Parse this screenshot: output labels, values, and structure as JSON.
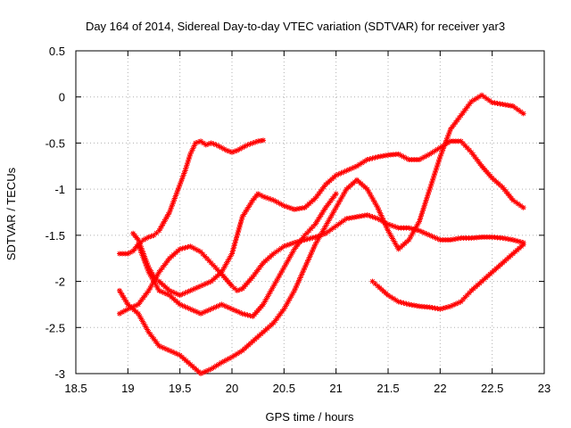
{
  "chart_data": {
    "type": "scatter",
    "title": "Day 164 of 2014, Sidereal Day-to-day VTEC variation (SDTVAR) for receiver yar3",
    "xlabel": "GPS time / hours",
    "ylabel": "SDTVAR / TECUs",
    "xlim": [
      18.5,
      23
    ],
    "ylim": [
      -3,
      0.5
    ],
    "xticks": [
      18.5,
      19,
      19.5,
      20,
      20.5,
      21,
      21.5,
      22,
      22.5,
      23
    ],
    "xtick_labels": [
      "18.5",
      "19",
      "19.5",
      "20",
      "20.5",
      "21",
      "21.5",
      "22",
      "22.5",
      "23"
    ],
    "yticks": [
      0.5,
      0,
      -0.5,
      -1,
      -1.5,
      -2,
      -2.5,
      -3
    ],
    "ytick_labels": [
      "0.5",
      "0",
      "-0.5",
      "-1",
      "-1.5",
      "-2",
      "-2.5",
      "-3"
    ],
    "grid": true,
    "legend": "none",
    "marker": "plus-cross",
    "color": "#ff0000",
    "series": [
      {
        "x": [
          18.92,
          19.0,
          19.05,
          19.1,
          19.15,
          19.2,
          19.25,
          19.3,
          19.35,
          19.4,
          19.45,
          19.5,
          19.55,
          19.6,
          19.65,
          19.7,
          19.75,
          19.8,
          19.85,
          19.9,
          19.95,
          20.0,
          20.05,
          20.1,
          20.15,
          20.2,
          20.25,
          20.3
        ],
        "y": [
          -1.7,
          -1.7,
          -1.67,
          -1.6,
          -1.55,
          -1.52,
          -1.5,
          -1.45,
          -1.35,
          -1.25,
          -1.1,
          -0.95,
          -0.8,
          -0.62,
          -0.5,
          -0.48,
          -0.52,
          -0.5,
          -0.52,
          -0.55,
          -0.58,
          -0.6,
          -0.58,
          -0.55,
          -0.52,
          -0.5,
          -0.48,
          -0.47
        ]
      },
      {
        "x": [
          18.92,
          19.0,
          19.1,
          19.2,
          19.3,
          19.4,
          19.5,
          19.6,
          19.7,
          19.8,
          19.9,
          20.0,
          20.05,
          20.1,
          20.2,
          20.3,
          20.4,
          20.5,
          20.6,
          20.7,
          20.8,
          20.9,
          21.0,
          21.1,
          21.2,
          21.3,
          21.4,
          21.5,
          21.6,
          21.7,
          21.8,
          21.9,
          22.0,
          22.1,
          22.2,
          22.3,
          22.4,
          22.5,
          22.6,
          22.7,
          22.8
        ],
        "y": [
          -2.35,
          -2.3,
          -2.25,
          -2.1,
          -1.9,
          -1.75,
          -1.65,
          -1.62,
          -1.68,
          -1.8,
          -1.92,
          -2.05,
          -2.1,
          -2.08,
          -1.95,
          -1.8,
          -1.7,
          -1.62,
          -1.58,
          -1.55,
          -1.52,
          -1.48,
          -1.4,
          -1.32,
          -1.3,
          -1.28,
          -1.32,
          -1.38,
          -1.42,
          -1.42,
          -1.45,
          -1.5,
          -1.55,
          -1.55,
          -1.53,
          -1.53,
          -1.52,
          -1.52,
          -1.53,
          -1.55,
          -1.58
        ]
      },
      {
        "x": [
          19.05,
          19.1,
          19.15,
          19.2,
          19.25,
          19.3,
          19.4,
          19.5,
          19.6,
          19.7,
          19.8,
          19.9,
          20.0,
          20.05,
          20.1,
          20.2,
          20.25,
          20.3,
          20.4,
          20.5,
          20.6,
          20.7,
          20.8,
          20.9,
          21.0,
          21.1,
          21.2,
          21.3,
          21.4,
          21.5,
          21.6,
          21.7,
          21.8,
          21.9,
          22.0,
          22.1,
          22.2,
          22.3,
          22.4,
          22.5,
          22.6,
          22.7,
          22.8
        ],
        "y": [
          -1.48,
          -1.55,
          -1.7,
          -1.85,
          -1.95,
          -2.0,
          -2.1,
          -2.15,
          -2.1,
          -2.05,
          -2.0,
          -1.9,
          -1.7,
          -1.5,
          -1.3,
          -1.12,
          -1.05,
          -1.08,
          -1.12,
          -1.18,
          -1.22,
          -1.2,
          -1.1,
          -0.95,
          -0.85,
          -0.8,
          -0.75,
          -0.68,
          -0.65,
          -0.63,
          -0.62,
          -0.68,
          -0.68,
          -0.62,
          -0.55,
          -0.48,
          -0.48,
          -0.6,
          -0.75,
          -0.88,
          -0.98,
          -1.12,
          -1.2
        ]
      },
      {
        "x": [
          18.92,
          19.0,
          19.1,
          19.2,
          19.3,
          19.4,
          19.5,
          19.6,
          19.7,
          19.8,
          19.9,
          20.0,
          20.1,
          20.2,
          20.3,
          20.4,
          20.5,
          20.6,
          20.7,
          20.8,
          20.9,
          21.0,
          21.1,
          21.2,
          21.3,
          21.4,
          21.5,
          21.6,
          21.7,
          21.8,
          21.9,
          22.0,
          22.1,
          22.2,
          22.3,
          22.4,
          22.5,
          22.6,
          22.7,
          22.8
        ],
        "y": [
          -2.1,
          -2.25,
          -2.35,
          -2.55,
          -2.7,
          -2.75,
          -2.8,
          -2.9,
          -3.0,
          -2.95,
          -2.88,
          -2.82,
          -2.75,
          -2.65,
          -2.55,
          -2.45,
          -2.3,
          -2.1,
          -1.85,
          -1.6,
          -1.4,
          -1.2,
          -1.0,
          -0.9,
          -1.0,
          -1.2,
          -1.45,
          -1.65,
          -1.55,
          -1.35,
          -1.0,
          -0.65,
          -0.35,
          -0.2,
          -0.05,
          0.02,
          -0.06,
          -0.08,
          -0.1,
          -0.18
        ]
      },
      {
        "x": [
          19.1,
          19.2,
          19.3,
          19.4,
          19.5,
          19.6,
          19.7,
          19.8,
          19.9,
          20.0,
          20.1,
          20.2,
          20.3,
          20.4,
          20.5,
          20.6,
          20.7,
          20.8,
          20.9,
          21.0
        ],
        "y": [
          -1.6,
          -1.9,
          -2.1,
          -2.15,
          -2.25,
          -2.3,
          -2.35,
          -2.3,
          -2.25,
          -2.3,
          -2.35,
          -2.38,
          -2.25,
          -2.05,
          -1.85,
          -1.65,
          -1.5,
          -1.38,
          -1.2,
          -1.05
        ]
      },
      {
        "x": [
          21.35,
          21.4,
          21.5,
          21.6,
          21.7,
          21.8,
          21.9,
          22.0,
          22.1,
          22.2,
          22.3,
          22.4,
          22.5,
          22.6,
          22.7,
          22.8
        ],
        "y": [
          -2.0,
          -2.05,
          -2.15,
          -2.22,
          -2.25,
          -2.27,
          -2.28,
          -2.3,
          -2.27,
          -2.22,
          -2.1,
          -2.0,
          -1.9,
          -1.8,
          -1.7,
          -1.6
        ]
      }
    ]
  }
}
